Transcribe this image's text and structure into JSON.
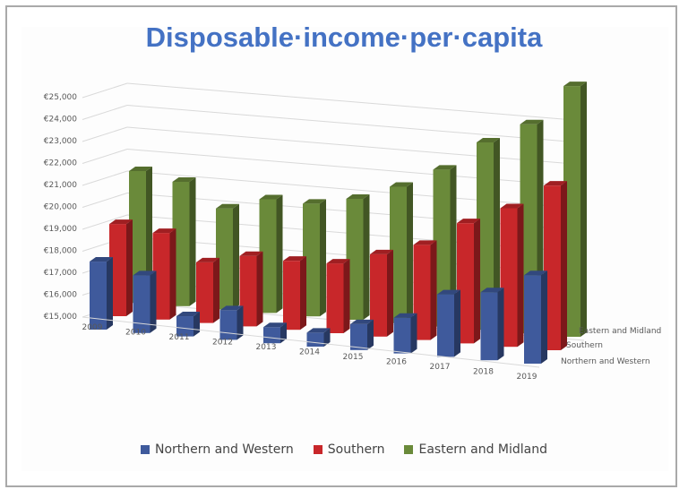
{
  "chart_data": {
    "type": "bar",
    "subtype": "3d-column",
    "title": "Disposable·income·per·capita",
    "xlabel": "",
    "ylabel": "",
    "ylim": [
      15000,
      25000
    ],
    "y_ticks": [
      15000,
      16000,
      17000,
      18000,
      19000,
      20000,
      21000,
      22000,
      23000,
      24000,
      25000
    ],
    "y_tick_labels": [
      "€15,000",
      "€16,000",
      "€17,000",
      "€18,000",
      "€19,000",
      "€20,000",
      "€21,000",
      "€22,000",
      "€23,000",
      "€24,000",
      "€25,000"
    ],
    "categories": [
      "2009",
      "2010",
      "2011",
      "2012",
      "2013",
      "2014",
      "2015",
      "2016",
      "2017",
      "2018",
      "2019"
    ],
    "series": [
      {
        "name": "Northern and Western",
        "color": "#3f5a9c",
        "values": [
          18100,
          17600,
          15900,
          16300,
          15700,
          15600,
          16100,
          16500,
          17600,
          17800,
          18600
        ]
      },
      {
        "name": "Southern",
        "color": "#c8272a",
        "values": [
          19200,
          18900,
          17700,
          18100,
          18000,
          18000,
          18500,
          19000,
          20000,
          20700,
          21700
        ]
      },
      {
        "name": "Eastern and Midland",
        "color": "#6a8a3a",
        "values": [
          21000,
          20600,
          19500,
          20000,
          19900,
          20200,
          20800,
          21600,
          22800,
          23600,
          25200
        ]
      }
    ],
    "legend_position": "bottom",
    "grid": true
  }
}
